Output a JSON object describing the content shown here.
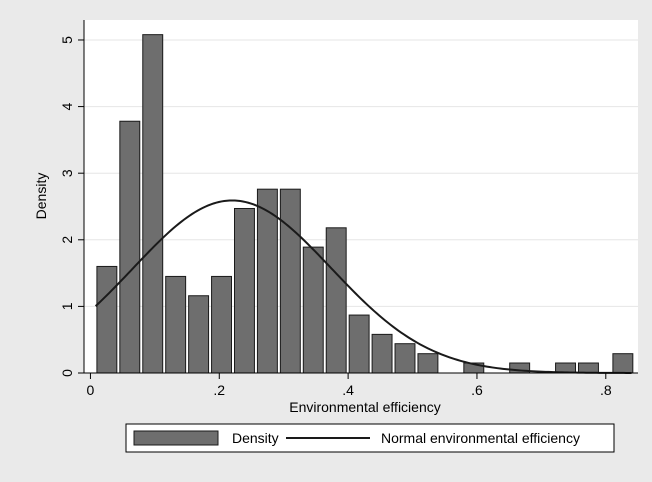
{
  "chart_data": {
    "type": "bar",
    "subtype": "histogram",
    "xlabel": "Environmental efficiency",
    "ylabel": "Density",
    "xlim": [
      -0.01,
      0.85
    ],
    "ylim": [
      0,
      5.3
    ],
    "xticks": [
      0,
      0.2,
      0.4,
      0.6,
      0.8
    ],
    "xtick_labels": [
      "0",
      ".2",
      ".4",
      ".6",
      ".8"
    ],
    "yticks": [
      0,
      1,
      2,
      3,
      4,
      5
    ],
    "ytick_labels": [
      "0",
      "1",
      "2",
      "3",
      "4",
      "5"
    ],
    "bin_width": 0.0356,
    "bins_x_center": [
      0.0255,
      0.0611,
      0.0967,
      0.1323,
      0.1679,
      0.2035,
      0.2391,
      0.2747,
      0.3103,
      0.3459,
      0.3815,
      0.4171,
      0.4527,
      0.4883,
      0.5239,
      0.5951,
      0.6663,
      0.7375,
      0.7731,
      0.8265
    ],
    "values": [
      1.6,
      3.78,
      5.08,
      1.45,
      1.16,
      1.45,
      2.47,
      2.76,
      2.76,
      1.89,
      2.18,
      0.87,
      0.58,
      0.44,
      0.29,
      0.15,
      0.15,
      0.15,
      0.15,
      0.29
    ],
    "normal_curve": {
      "mean": 0.22,
      "sd": 0.154
    },
    "grid": true,
    "legend_position": "bottom",
    "series": [
      {
        "name": "Density",
        "kind": "bars",
        "color": "#6e6e6e"
      },
      {
        "name": "Normal environmental efficiency",
        "kind": "line",
        "color": "#1a1a1a"
      }
    ]
  }
}
